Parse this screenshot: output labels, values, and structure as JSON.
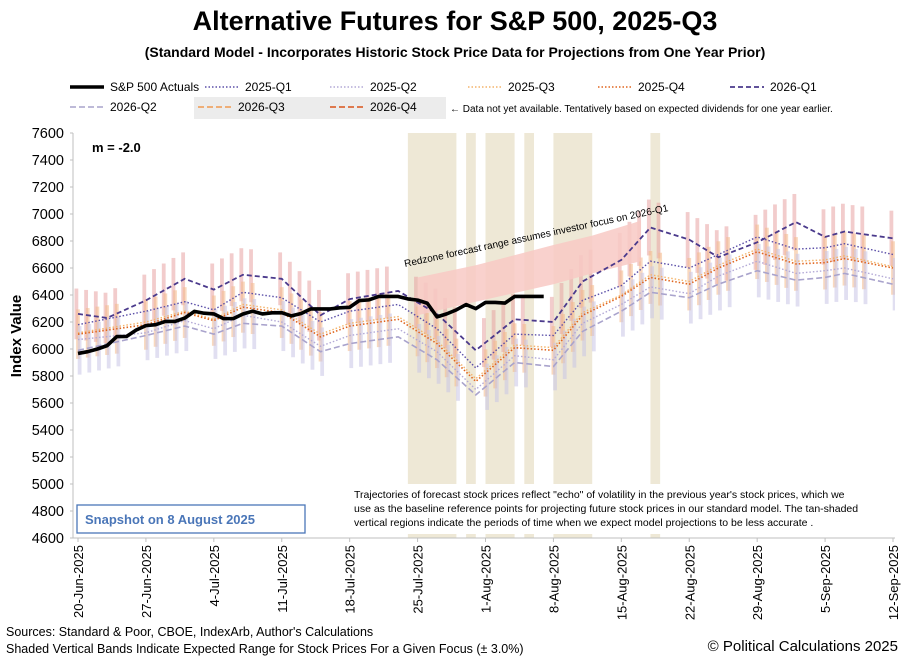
{
  "header": {
    "title": "Alternative Futures for S&P 500, 2025-Q3",
    "subtitle": "(Standard Model - Incorporates Historic Stock Price Data for Projections from One Year Prior)"
  },
  "legend": {
    "note": "← Data not yet available.  Tentatively based on expected dividends for one year earlier."
  },
  "annotations": {
    "m_label": "m = -2.0",
    "redzone": "Redzone forecast range assumes investor focus on 2026-Q1",
    "snapshot": "Snapshot on 8 August 2025",
    "explanation": [
      "Trajectories of forecast stock prices reflect \"echo\" of volatility in  the previous year's stock prices, which we",
      "use as the baseline reference points for projecting future stock prices in our standard model.   The tan-shaded",
      "vertical regions indicate the periods of time when we expect model projections to be less accurate ."
    ]
  },
  "footer": {
    "sources": "Sources: Standard & Poor, CBOE, IndexArb, Author's Calculations",
    "bands": "Shaded Vertical Bands Indicate Expected Range for Stock Prices For a Given Focus (± 3.0%)",
    "copyright": "© Political Calculations 2025"
  },
  "colors": {
    "actual": "#000000",
    "q2025_1": "#5b4fa8",
    "q2025_2": "#b3a9d6",
    "q2025_3": "#f4b36a",
    "q2025_4": "#e0651e",
    "q2026_1": "#4b3a8c",
    "q2026_2": "#a9a3cc",
    "q2026_3": "#f09a50",
    "q2026_4": "#d9531a",
    "redzone": "#f8c9c4",
    "tan": "#eee8d6"
  },
  "chart_data": {
    "type": "line",
    "title": "Alternative Futures for S&P 500, 2025-Q3",
    "ylabel": "Index Value",
    "xlabel": "",
    "ylim": [
      4600,
      7600
    ],
    "ytick_step": 200,
    "x_tick_labels": [
      "20-Jun-2025",
      "27-Jun-2025",
      "4-Jul-2025",
      "11-Jul-2025",
      "18-Jul-2025",
      "25-Jul-2025",
      "1-Aug-2025",
      "8-Aug-2025",
      "15-Aug-2025",
      "22-Aug-2025",
      "29-Aug-2025",
      "5-Sep-2025",
      "12-Sep-2025"
    ],
    "x_range_days": [
      0,
      84
    ],
    "band_pct": 3.0,
    "tan_regions_days": [
      [
        34,
        39
      ],
      [
        40,
        41
      ],
      [
        42,
        45
      ],
      [
        46,
        47
      ],
      [
        49,
        53
      ],
      [
        59,
        60
      ]
    ],
    "redzone": {
      "days": [
        35,
        41,
        49,
        53,
        58
      ],
      "lower": [
        6250,
        6350,
        6480,
        6560,
        6650
      ],
      "upper": [
        6530,
        6620,
        6770,
        6840,
        6950
      ]
    },
    "actual": {
      "name": "S&P 500 Actuals",
      "days": [
        0,
        1,
        2,
        3,
        4,
        5,
        6,
        7,
        8,
        9,
        10,
        11,
        12,
        13,
        14,
        15,
        16,
        17,
        18,
        19,
        20,
        21,
        22,
        23,
        24,
        25,
        26,
        27,
        28,
        29,
        30,
        31,
        32,
        33,
        34,
        35,
        36,
        37,
        38,
        39,
        40,
        41,
        42,
        43,
        44,
        45,
        46,
        47,
        48
      ],
      "values": [
        5967,
        5980,
        6000,
        6025,
        6092,
        6093,
        6141,
        6173,
        6180,
        6204,
        6204,
        6229,
        6279,
        6265,
        6260,
        6225,
        6225,
        6259,
        6280,
        6260,
        6268,
        6269,
        6245,
        6263,
        6297,
        6297,
        6297,
        6305,
        6309,
        6359,
        6364,
        6389,
        6389,
        6389,
        6371,
        6362,
        6339,
        6238,
        6260,
        6290,
        6329,
        6299,
        6345,
        6345,
        6340,
        6389,
        6389,
        6389,
        6389
      ]
    },
    "series": [
      {
        "name": "2025-Q1",
        "days": [
          0,
          7,
          11,
          14,
          17,
          21,
          25,
          28,
          33,
          37,
          41,
          45,
          49,
          52,
          56,
          59,
          63,
          66,
          70,
          74,
          77,
          79,
          84
        ],
        "values": [
          6180,
          6280,
          6350,
          6290,
          6420,
          6380,
          6200,
          6280,
          6330,
          6150,
          5860,
          6110,
          6100,
          6360,
          6470,
          6650,
          6600,
          6700,
          6830,
          6740,
          6750,
          6780,
          6700
        ]
      },
      {
        "name": "2025-Q2",
        "days": [
          0,
          7,
          11,
          14,
          17,
          21,
          25,
          28,
          33,
          37,
          41,
          45,
          49,
          52,
          56,
          59,
          63,
          66,
          70,
          74,
          77,
          79,
          84
        ],
        "values": [
          6070,
          6120,
          6210,
          6150,
          6250,
          6200,
          6020,
          6100,
          6150,
          5980,
          5700,
          5950,
          5920,
          6190,
          6330,
          6460,
          6410,
          6540,
          6650,
          6560,
          6580,
          6600,
          6520
        ]
      },
      {
        "name": "2025-Q3",
        "days": [
          0,
          7,
          11,
          14,
          17,
          21,
          25,
          28,
          33,
          37,
          41,
          45,
          49,
          52,
          56,
          59,
          63,
          66,
          70,
          74,
          77,
          79,
          84
        ],
        "values": [
          6120,
          6200,
          6280,
          6220,
          6330,
          6290,
          6110,
          6190,
          6240,
          6060,
          5780,
          6030,
          6010,
          6270,
          6400,
          6550,
          6500,
          6620,
          6740,
          6650,
          6660,
          6690,
          6610
        ]
      },
      {
        "name": "2025-Q4",
        "days": [
          0,
          7,
          11,
          14,
          17,
          21,
          25,
          28,
          33,
          37,
          41,
          45,
          49,
          52,
          56,
          59,
          63,
          66,
          70,
          74,
          77,
          79,
          84
        ],
        "values": [
          6110,
          6180,
          6270,
          6210,
          6310,
          6270,
          6090,
          6170,
          6220,
          6040,
          5760,
          6010,
          5990,
          6250,
          6390,
          6530,
          6480,
          6600,
          6720,
          6630,
          6640,
          6670,
          6600
        ]
      },
      {
        "name": "2026-Q1",
        "days": [
          0,
          3,
          7,
          11,
          14,
          17,
          21,
          25,
          28,
          33,
          37,
          41,
          45,
          49,
          52,
          56,
          59,
          63,
          66,
          70,
          74,
          77,
          79,
          84
        ],
        "values": [
          6260,
          6230,
          6360,
          6520,
          6440,
          6550,
          6520,
          6250,
          6370,
          6430,
          6260,
          5990,
          6220,
          6200,
          6500,
          6660,
          6900,
          6810,
          6680,
          6790,
          6940,
          6830,
          6870,
          6820
        ]
      },
      {
        "name": "2026-Q2",
        "days": [
          0,
          7,
          11,
          14,
          17,
          21,
          25,
          28,
          33,
          37,
          41,
          45,
          49,
          52,
          56,
          59,
          63,
          66,
          70,
          74,
          77,
          79,
          84
        ],
        "values": [
          5990,
          6100,
          6170,
          6110,
          6190,
          6170,
          5980,
          6040,
          6090,
          5920,
          5660,
          5900,
          5870,
          6130,
          6280,
          6420,
          6380,
          6480,
          6580,
          6510,
          6530,
          6560,
          6480
        ]
      },
      {
        "name": "2026-Q3",
        "days": [],
        "values": []
      },
      {
        "name": "2026-Q4",
        "days": [],
        "values": []
      }
    ]
  }
}
